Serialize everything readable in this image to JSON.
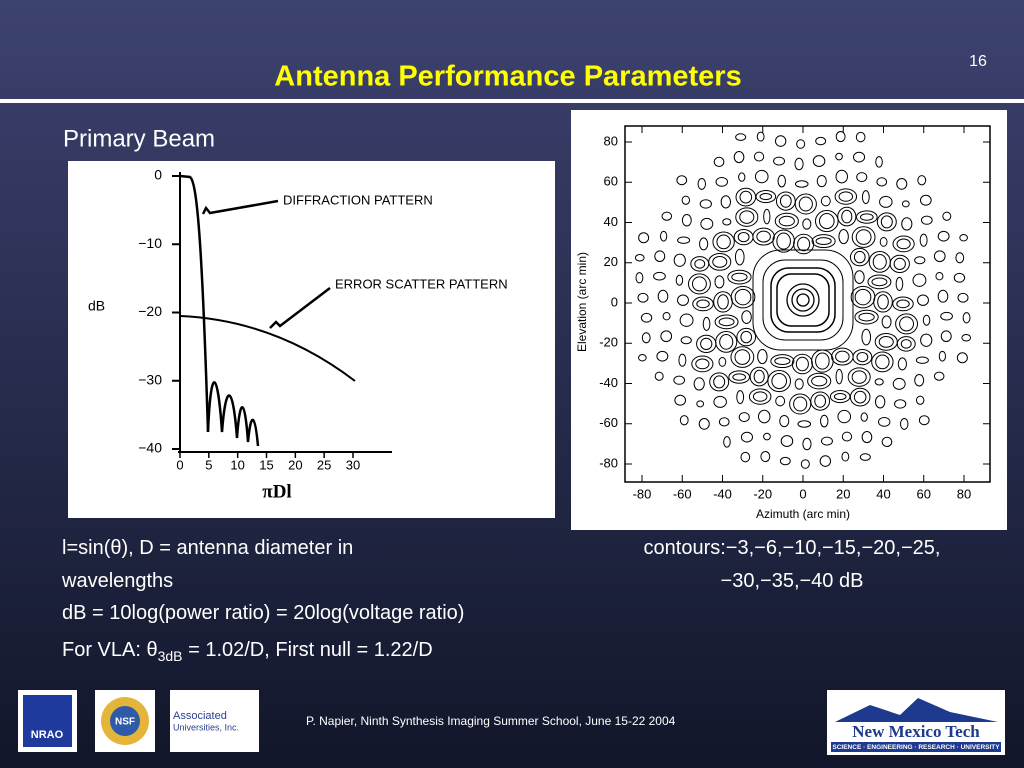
{
  "slide_number": "16",
  "title": "Antenna Performance Parameters",
  "subtitle": "Primary Beam",
  "left_figure": {
    "y_label": "dB",
    "y_ticks": [
      "0",
      "−10",
      "−20",
      "−30",
      "−40"
    ],
    "x_ticks": [
      "0",
      "5",
      "10",
      "15",
      "20",
      "25",
      "30"
    ],
    "x_label": "πDl",
    "annotations": [
      "DIFFRACTION PATTERN",
      "ERROR SCATTER PATTERN"
    ]
  },
  "right_figure": {
    "y_label": "Elevation (arc min)",
    "x_label": "Azimuth (arc min)",
    "y_ticks": [
      "80",
      "60",
      "40",
      "20",
      "0",
      "-20",
      "-40",
      "-60",
      "-80"
    ],
    "x_ticks": [
      "-80",
      "-60",
      "-40",
      "-20",
      "0",
      "20",
      "40",
      "60",
      "80"
    ]
  },
  "body": {
    "definition": "l=sin(θ), D = antenna diameter in wavelengths",
    "contours": "contours:−3,−6,−10,−15,−20,−25, −30,−35,−40 dB",
    "db": "dB = 10log(power ratio) = 20log(voltage ratio)",
    "vla": {
      "prefix": "For VLA: θ",
      "subscript": "3dB",
      "suffix": " = 1.02/D, First null = 1.22/D"
    }
  },
  "footer": {
    "credit": "P. Napier, Ninth Synthesis Imaging Summer School, June 15-22 2004",
    "logos": {
      "nrao": "NRAO",
      "nsf": "NSF",
      "aui": [
        "Associated",
        "Universities, Inc."
      ],
      "nmt": "New Mexico Tech",
      "nmt_tagline": "SCIENCE · ENGINEERING · RESEARCH · UNIVERSITY"
    }
  }
}
